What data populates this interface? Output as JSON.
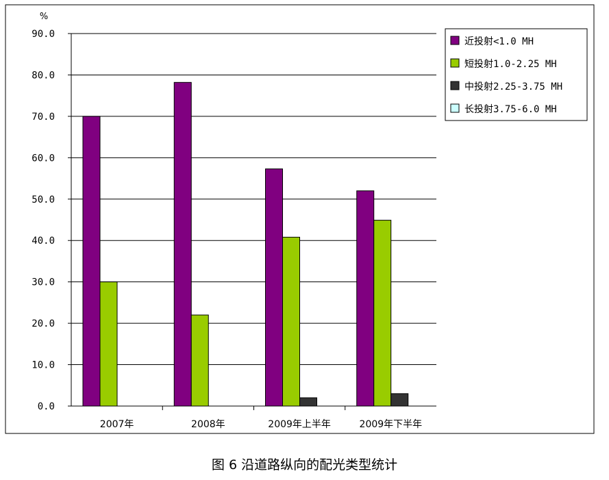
{
  "chart_data": {
    "type": "bar",
    "title": "",
    "xlabel": "",
    "ylabel": "%",
    "ylim": [
      0,
      90
    ],
    "yticks": [
      "0.0",
      "10.0",
      "20.0",
      "30.0",
      "40.0",
      "50.0",
      "60.0",
      "70.0",
      "80.0",
      "90.0"
    ],
    "grid": true,
    "legend_position": "top-right",
    "categories": [
      "2007年",
      "2008年",
      "2009年上半年",
      "2009年下半年"
    ],
    "series": [
      {
        "name": "近投射<1.0 MH",
        "color": "#800080",
        "values": [
          70.0,
          78.2,
          57.3,
          52.0
        ]
      },
      {
        "name": "短投射1.0-2.25 MH",
        "color": "#99cc00",
        "values": [
          30.0,
          22.0,
          40.8,
          44.9
        ]
      },
      {
        "name": "中投射2.25-3.75 MH",
        "color": "#333333",
        "values": [
          0,
          0,
          2.0,
          3.0
        ]
      },
      {
        "name": "长投射3.75-6.0 MH",
        "color": "#ccffff",
        "values": [
          0,
          0,
          0,
          0
        ]
      }
    ]
  },
  "caption": "图 6 沿道路纵向的配光类型统计"
}
